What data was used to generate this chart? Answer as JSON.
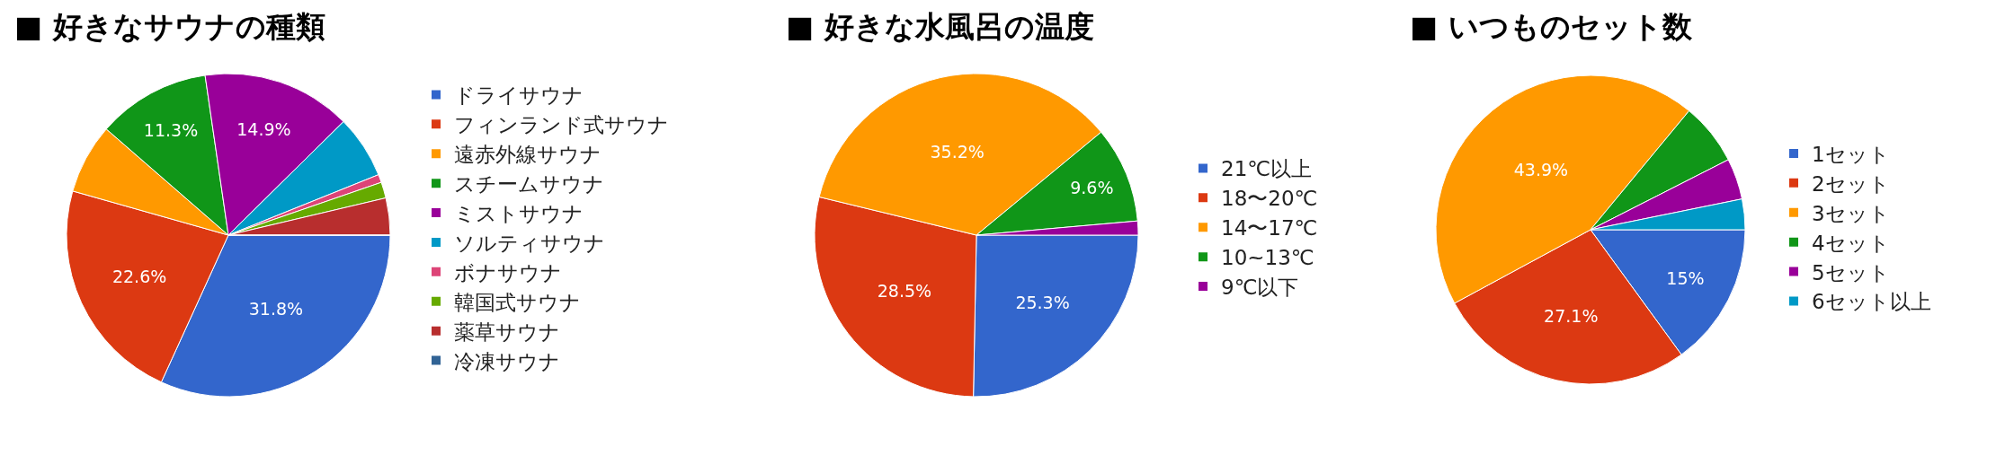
{
  "chart_data": [
    {
      "type": "pie",
      "title": "■ 好きなサウナの種類",
      "categories": [
        "ドライサウナ",
        "フィンランド式サウナ",
        "遠赤外線サウナ",
        "スチームサウナ",
        "ミストサウナ",
        "ソルティサウナ",
        "ボナサウナ",
        "韓国式サウナ",
        "薬草サウナ",
        "冷凍サウナ"
      ],
      "values": [
        31.8,
        22.6,
        7.0,
        11.3,
        14.9,
        6.3,
        0.8,
        1.6,
        3.7,
        0
      ],
      "colors": [
        "#3366cc",
        "#dc3912",
        "#ff9900",
        "#109618",
        "#990099",
        "#0099c6",
        "#dd4477",
        "#66aa00",
        "#b82e2e",
        "#316395"
      ],
      "value_labels": [
        "31.8%",
        "22.6%",
        null,
        "11.3%",
        "14.9%",
        null,
        null,
        null,
        null,
        null
      ],
      "legend": "right"
    },
    {
      "type": "pie",
      "title": "■ 好きな水風呂の温度",
      "categories": [
        "21℃以上",
        "18〜20℃",
        "14〜17℃",
        "10~13℃",
        "9℃以下"
      ],
      "values": [
        25.3,
        28.5,
        35.2,
        9.6,
        1.4
      ],
      "colors": [
        "#3366cc",
        "#dc3912",
        "#ff9900",
        "#109618",
        "#990099"
      ],
      "value_labels": [
        "25.3%",
        "28.5%",
        "35.2%",
        "9.6%",
        null
      ],
      "legend": "right"
    },
    {
      "type": "pie",
      "title": "■ いつものセット数",
      "categories": [
        "1セット",
        "2セット",
        "3セット",
        "4セット",
        "5セット",
        "6セット以上"
      ],
      "values": [
        15,
        27.1,
        43.9,
        6.5,
        4.3,
        3.2
      ],
      "colors": [
        "#3366cc",
        "#dc3912",
        "#ff9900",
        "#109618",
        "#990099",
        "#0099c6"
      ],
      "value_labels": [
        "15%",
        "27.1%",
        "43.9%",
        null,
        null,
        null
      ],
      "legend": "right"
    }
  ]
}
